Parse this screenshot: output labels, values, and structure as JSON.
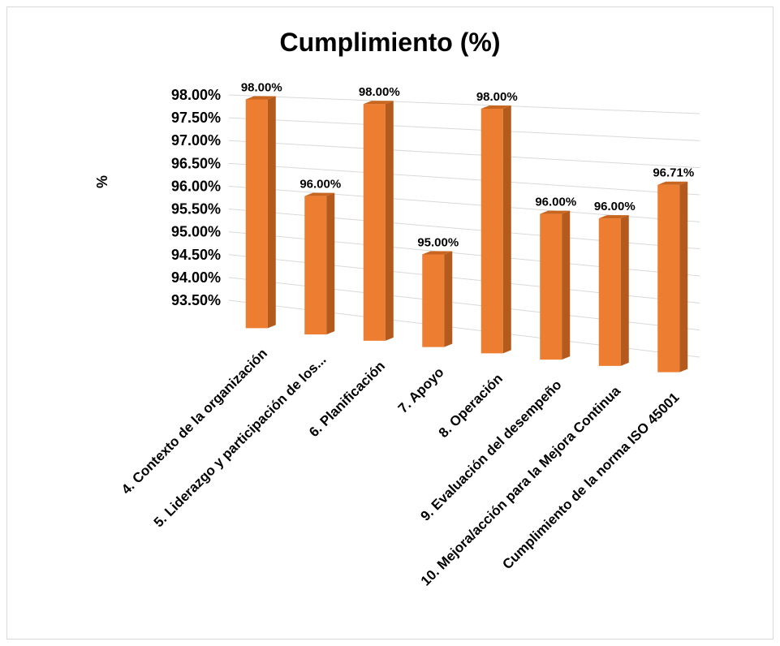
{
  "chart_data": {
    "type": "bar",
    "title": "Cumplimiento (%)",
    "xlabel": "",
    "ylabel": "%",
    "categories": [
      "4. Contexto de la organización",
      "5. Liderazgo y participación de los...",
      "6. Planificación",
      "7. Apoyo",
      "8. Operación",
      "9. Evaluación del desempeño",
      "10. Mejora/acción para la Mejora Continua",
      "Cumplimiento de la norma ISO 45001"
    ],
    "values": [
      98.0,
      96.0,
      98.0,
      95.0,
      98.0,
      96.0,
      96.0,
      96.71
    ],
    "data_labels": [
      "98.00%",
      "96.00%",
      "98.00%",
      "95.00%",
      "98.00%",
      "96.00%",
      "96.00%",
      "96.71%"
    ],
    "y_ticks": [
      "93.50%",
      "94.00%",
      "94.50%",
      "95.00%",
      "95.50%",
      "96.00%",
      "96.50%",
      "97.00%",
      "97.50%",
      "98.00%"
    ],
    "ylim": [
      93.5,
      98.0
    ],
    "grid": true,
    "legend": "none",
    "bar_color": "#ED7D31",
    "bar_side_color": "#B45A1C",
    "bar_top_color": "#C8651F"
  }
}
